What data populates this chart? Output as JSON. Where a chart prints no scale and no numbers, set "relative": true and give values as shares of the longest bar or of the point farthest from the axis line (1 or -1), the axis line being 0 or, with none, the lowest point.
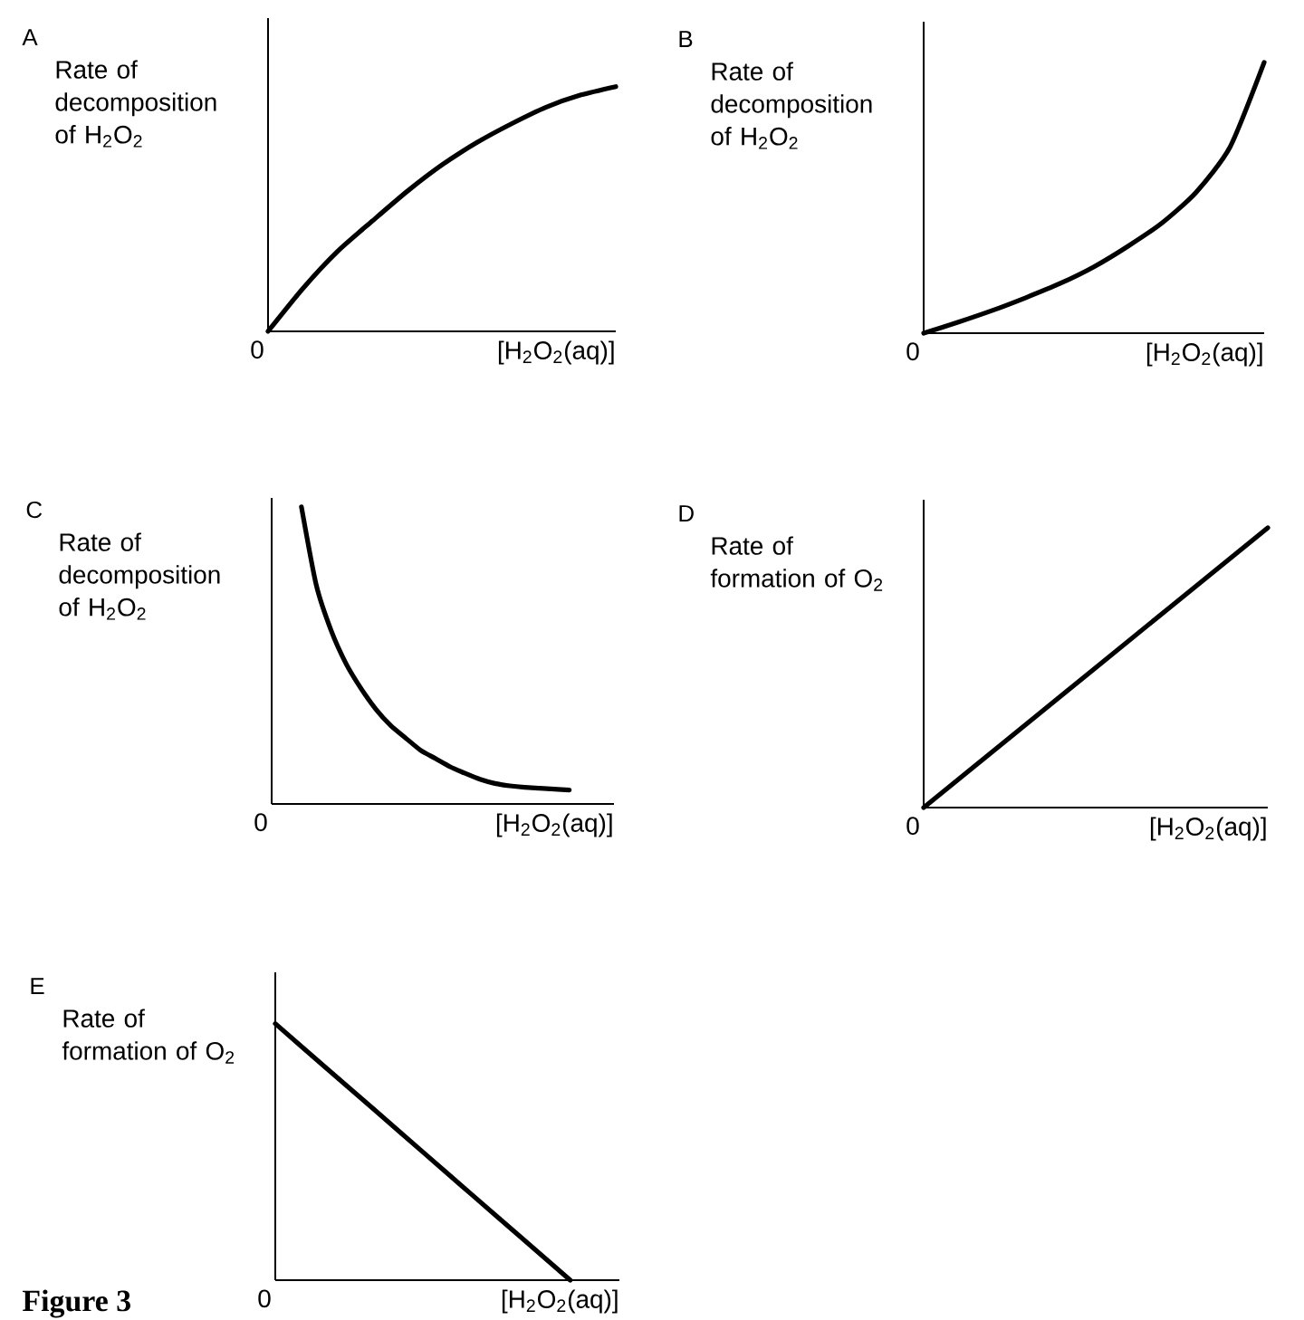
{
  "chart_data": [
    {
      "type": "line",
      "ylabel": "Rate of decomposition of H$_{2}$O$_{2}$",
      "xlabel": "[H$_{2}$O$_{2}$(aq)]",
      "relative": true,
      "color": "#000000",
      "categories": [
        null,
        null,
        null,
        null,
        null,
        null,
        null,
        null,
        null,
        null,
        null
      ],
      "values": [
        0,
        0.175,
        0.327,
        0.451,
        0.572,
        0.68,
        0.771,
        0.848,
        0.916,
        0.966,
        1
      ],
      "annotations": [
        "A",
        "0"
      ]
    },
    {
      "type": "line",
      "ylabel": "Rate of decomposition of H$_{2}$O$_{2}$",
      "xlabel": "[H$_{2}$O$_{2}$(aq)]",
      "relative": true,
      "color": "#000000",
      "categories": [
        null,
        null,
        null,
        null,
        null,
        null,
        null,
        null,
        null,
        null,
        null
      ],
      "values": [
        0,
        0.04,
        0.083,
        0.131,
        0.183,
        0.245,
        0.321,
        0.407,
        0.52,
        0.688,
        1
      ],
      "annotations": [
        "B",
        "0"
      ]
    },
    {
      "type": "line",
      "ylabel": "Rate of decomposition of H$_{2}$O$_{2}$",
      "xlabel": "[H$_{2}$O$_{2}$(aq)]",
      "relative": true,
      "color": "#000000",
      "categories": [
        null,
        null,
        null,
        null,
        null,
        null,
        null,
        null,
        null,
        null,
        null,
        null,
        null,
        null,
        null,
        null,
        null,
        null,
        null,
        null,
        null,
        null,
        null,
        null
      ],
      "values": [
        null,
        null,
        1,
        0.736,
        0.583,
        0.472,
        0.389,
        0.319,
        0.264,
        0.222,
        0.181,
        0.153,
        0.125,
        0.103,
        0.083,
        0.069,
        0.061,
        0.056,
        0.053,
        0.05,
        0.047,
        null,
        null,
        null
      ],
      "annotations": [
        "C",
        "0"
      ]
    },
    {
      "type": "line",
      "ylabel": "Rate of formation of O$_{2}$",
      "xlabel": "[H$_{2}$O$_{2}$(aq)]",
      "relative": true,
      "color": "#000000",
      "categories": [
        null,
        null,
        null
      ],
      "values": [
        0,
        0.5,
        1
      ],
      "annotations": [
        "D",
        "0"
      ]
    },
    {
      "type": "line",
      "ylabel": "Rate of formation of O$_{2}$",
      "xlabel": "[H$_{2}$O$_{2}$(aq)]",
      "relative": true,
      "color": "#000000",
      "categories": [
        null,
        null,
        null,
        null,
        null,
        null,
        null,
        null
      ],
      "values": [
        1,
        0.833,
        0.667,
        0.5,
        0.333,
        0.167,
        0,
        null
      ],
      "annotations": [
        "E",
        "0",
        "Figure 3"
      ]
    }
  ]
}
